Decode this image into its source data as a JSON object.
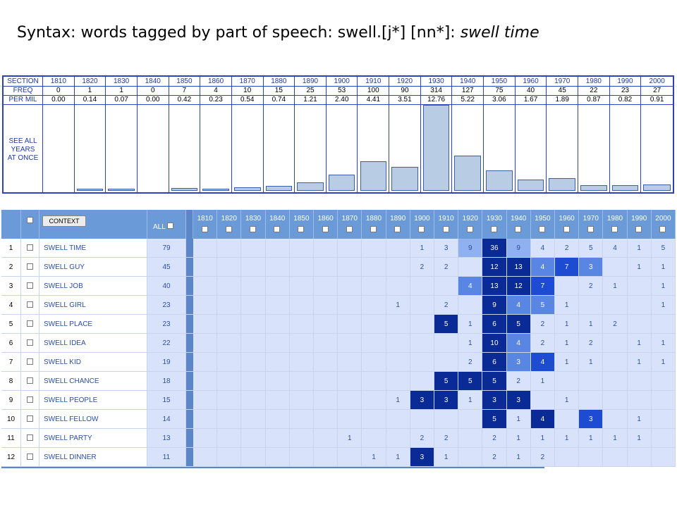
{
  "title": {
    "prefix": "Syntax: words tagged by part of speech: swell.[j*] [nn*]: ",
    "italic": "swell time"
  },
  "freq_table": {
    "labels": {
      "section": "SECTION",
      "freq": "FREQ",
      "per_mil": "PER MIL",
      "see_all": "SEE ALL YEARS AT ONCE"
    },
    "decades": [
      "1810",
      "1820",
      "1830",
      "1840",
      "1850",
      "1860",
      "1870",
      "1880",
      "1890",
      "1900",
      "1910",
      "1920",
      "1930",
      "1940",
      "1950",
      "1960",
      "1970",
      "1980",
      "1990",
      "2000"
    ],
    "freq": [
      "0",
      "1",
      "1",
      "0",
      "7",
      "4",
      "10",
      "15",
      "25",
      "53",
      "100",
      "90",
      "314",
      "127",
      "75",
      "40",
      "45",
      "22",
      "23",
      "27"
    ],
    "per_mil": [
      "0.00",
      "0.14",
      "0.07",
      "0.00",
      "0.42",
      "0.23",
      "0.54",
      "0.74",
      "1.21",
      "2.40",
      "4.41",
      "3.51",
      "12.76",
      "5.22",
      "3.06",
      "1.67",
      "1.89",
      "0.87",
      "0.82",
      "0.91"
    ]
  },
  "results": {
    "context_label": "CONTEXT",
    "all_label": "ALL",
    "decades": [
      "1810",
      "1820",
      "1830",
      "1840",
      "1850",
      "1860",
      "1870",
      "1880",
      "1890",
      "1900",
      "1910",
      "1920",
      "1930",
      "1940",
      "1950",
      "1960",
      "1970",
      "1980",
      "1990",
      "2000"
    ],
    "rows": [
      {
        "n": "1",
        "word": "SWELL TIME",
        "all": "79",
        "cells": [
          "",
          "",
          "",
          "",
          "",
          "",
          "",
          "",
          "",
          "1",
          "3",
          "9",
          "36",
          "9",
          "4",
          "2",
          "5",
          "4",
          "1",
          "5"
        ]
      },
      {
        "n": "2",
        "word": "SWELL GUY",
        "all": "45",
        "cells": [
          "",
          "",
          "",
          "",
          "",
          "",
          "",
          "",
          "",
          "2",
          "2",
          "",
          "12",
          "13",
          "4",
          "7",
          "3",
          "",
          "1",
          "1"
        ]
      },
      {
        "n": "3",
        "word": "SWELL JOB",
        "all": "40",
        "cells": [
          "",
          "",
          "",
          "",
          "",
          "",
          "",
          "",
          "",
          "",
          "",
          "4",
          "13",
          "12",
          "7",
          "",
          "2",
          "1",
          "",
          "1"
        ]
      },
      {
        "n": "4",
        "word": "SWELL GIRL",
        "all": "23",
        "cells": [
          "",
          "",
          "",
          "",
          "",
          "",
          "",
          "",
          "1",
          "",
          "2",
          "",
          "9",
          "4",
          "5",
          "1",
          "",
          "",
          "",
          "1"
        ]
      },
      {
        "n": "5",
        "word": "SWELL PLACE",
        "all": "23",
        "cells": [
          "",
          "",
          "",
          "",
          "",
          "",
          "",
          "",
          "",
          "",
          "5",
          "1",
          "6",
          "5",
          "2",
          "1",
          "1",
          "2",
          "",
          ""
        ]
      },
      {
        "n": "6",
        "word": "SWELL IDEA",
        "all": "22",
        "cells": [
          "",
          "",
          "",
          "",
          "",
          "",
          "",
          "",
          "",
          "",
          "",
          "1",
          "10",
          "4",
          "2",
          "1",
          "2",
          "",
          "1",
          "1"
        ]
      },
      {
        "n": "7",
        "word": "SWELL KID",
        "all": "19",
        "cells": [
          "",
          "",
          "",
          "",
          "",
          "",
          "",
          "",
          "",
          "",
          "",
          "2",
          "6",
          "3",
          "4",
          "1",
          "1",
          "",
          "1",
          "1"
        ]
      },
      {
        "n": "8",
        "word": "SWELL CHANCE",
        "all": "18",
        "cells": [
          "",
          "",
          "",
          "",
          "",
          "",
          "",
          "",
          "",
          "",
          "5",
          "5",
          "5",
          "2",
          "1",
          "",
          "",
          "",
          "",
          ""
        ]
      },
      {
        "n": "9",
        "word": "SWELL PEOPLE",
        "all": "15",
        "cells": [
          "",
          "",
          "",
          "",
          "",
          "",
          "",
          "",
          "1",
          "3",
          "3",
          "1",
          "3",
          "3",
          "",
          "1",
          "",
          "",
          "",
          ""
        ]
      },
      {
        "n": "10",
        "word": "SWELL FELLOW",
        "all": "14",
        "cells": [
          "",
          "",
          "",
          "",
          "",
          "",
          "",
          "",
          "",
          "",
          "",
          "",
          "5",
          "1",
          "4",
          "",
          "3",
          "",
          "1",
          ""
        ]
      },
      {
        "n": "11",
        "word": "SWELL PARTY",
        "all": "13",
        "cells": [
          "",
          "",
          "",
          "",
          "",
          "",
          "1",
          "",
          "",
          "2",
          "2",
          "",
          "2",
          "1",
          "1",
          "1",
          "1",
          "1",
          "1",
          ""
        ]
      },
      {
        "n": "12",
        "word": "SWELL DINNER",
        "all": "11",
        "cells": [
          "",
          "",
          "",
          "",
          "",
          "",
          "",
          "1",
          "1",
          "3",
          "1",
          "",
          "2",
          "1",
          "2",
          "",
          "",
          "",
          "",
          ""
        ]
      }
    ],
    "levels": [
      [
        "",
        "",
        "",
        "",
        "",
        "",
        "",
        "",
        "",
        "1",
        "1",
        "2",
        "5",
        "2",
        "1",
        "1",
        "1",
        "1",
        "1",
        "1"
      ],
      [
        "",
        "",
        "",
        "",
        "",
        "",
        "",
        "",
        "",
        "1",
        "1",
        "",
        "5",
        "5",
        "3",
        "4",
        "3",
        "",
        "1",
        "1"
      ],
      [
        "",
        "",
        "",
        "",
        "",
        "",
        "",
        "",
        "",
        "",
        "",
        "3",
        "5",
        "5",
        "4",
        "",
        "1",
        "1",
        "",
        "1"
      ],
      [
        "",
        "",
        "",
        "",
        "",
        "",
        "",
        "",
        "1",
        "",
        "1",
        "",
        "5",
        "3",
        "3",
        "1",
        "",
        "",
        "",
        "1"
      ],
      [
        "",
        "",
        "",
        "",
        "",
        "",
        "",
        "",
        "",
        "",
        "5",
        "1",
        "5",
        "5",
        "1",
        "1",
        "1",
        "1",
        "",
        ""
      ],
      [
        "",
        "",
        "",
        "",
        "",
        "",
        "",
        "",
        "",
        "",
        "",
        "1",
        "5",
        "3",
        "1",
        "1",
        "1",
        "",
        "1",
        "1"
      ],
      [
        "",
        "",
        "",
        "",
        "",
        "",
        "",
        "",
        "",
        "",
        "",
        "1",
        "5",
        "3",
        "4",
        "1",
        "1",
        "",
        "1",
        "1"
      ],
      [
        "",
        "",
        "",
        "",
        "",
        "",
        "",
        "",
        "",
        "",
        "5",
        "5",
        "5",
        "1",
        "1",
        "",
        "",
        "",
        "",
        ""
      ],
      [
        "",
        "",
        "",
        "",
        "",
        "",
        "",
        "",
        "1",
        "5",
        "5",
        "1",
        "5",
        "5",
        "",
        "1",
        "",
        "",
        "",
        ""
      ],
      [
        "",
        "",
        "",
        "",
        "",
        "",
        "",
        "",
        "",
        "",
        "",
        "",
        "5",
        "1",
        "5",
        "",
        "4",
        "",
        "1",
        ""
      ],
      [
        "",
        "",
        "",
        "",
        "",
        "",
        "1",
        "",
        "",
        "1",
        "1",
        "",
        "1",
        "1",
        "1",
        "1",
        "1",
        "1",
        "1",
        ""
      ],
      [
        "",
        "",
        "",
        "",
        "",
        "",
        "",
        "1",
        "1",
        "5",
        "1",
        "",
        "1",
        "1",
        "1",
        "",
        "",
        "",
        "",
        ""
      ]
    ]
  }
}
